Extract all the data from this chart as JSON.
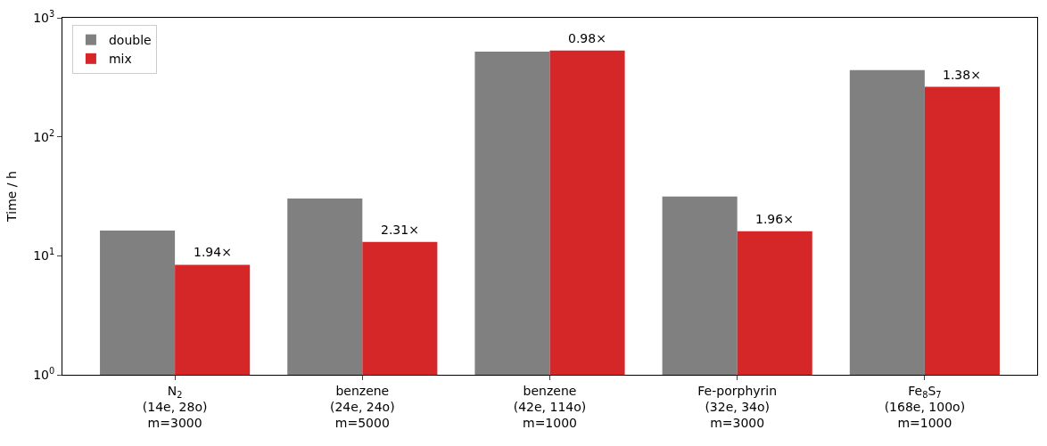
{
  "chart_data": {
    "type": "bar",
    "ylabel": "Time / h",
    "log": true,
    "ylim": [
      1,
      1000
    ],
    "yticks": [
      {
        "value": 1,
        "label": "10$^{0}$"
      },
      {
        "value": 10,
        "label": "10$^{1}$"
      },
      {
        "value": 100,
        "label": "10$^{2}$"
      },
      {
        "value": 1000,
        "label": "10$^{3}$"
      }
    ],
    "categories": [
      "N$_{2}$\n(14e, 28o)\nm=3000",
      "benzene\n(24e, 24o)\nm=5000",
      "benzene\n(42e, 114o)\nm=1000",
      "Fe-porphyrin\n(32e, 34o)\nm=3000",
      "Fe$_{8}$S$_{7}$\n(168e, 100o)\nm=1000"
    ],
    "series": [
      {
        "name": "double",
        "color": "#808080",
        "values": [
          16.3,
          30.3,
          520,
          31.5,
          363
        ]
      },
      {
        "name": "mix",
        "color": "#d62728",
        "values": [
          8.4,
          13.1,
          530,
          16.1,
          263
        ]
      }
    ],
    "annotations": [
      {
        "text": "1.94×",
        "x": "N$_{2}$\n(14e, 28o)\nm=3000",
        "y": 8.4
      },
      {
        "text": "2.31×",
        "x": "benzene\n(24e, 24o)\nm=5000",
        "y": 13.1
      },
      {
        "text": "0.98×",
        "x": "benzene\n(42e, 114o)\nm=1000",
        "y": 530
      },
      {
        "text": "1.96×",
        "x": "Fe-porphyrin\n(32e, 34o)\nm=3000",
        "y": 16.1
      },
      {
        "text": "1.38×",
        "x": "Fe$_{8}$S$_{7}$\n(168e, 100o)\nm=1000",
        "y": 263
      }
    ],
    "legend": "top left"
  }
}
